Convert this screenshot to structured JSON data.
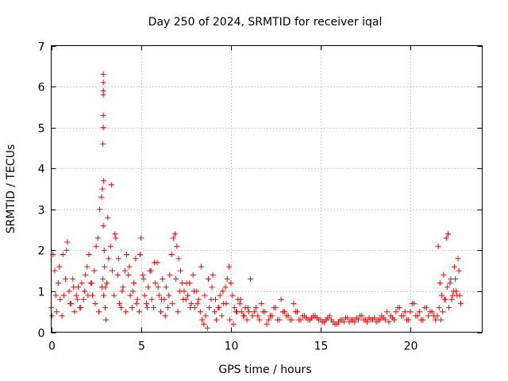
{
  "chart_data": {
    "type": "scatter",
    "title": "Day 250 of 2024, SRMTID for receiver iqal",
    "xlabel": "GPS time / hours",
    "ylabel": "SRMTID / TECUs",
    "xlim": [
      0,
      24
    ],
    "ylim": [
      0,
      7
    ],
    "xticks": [
      0,
      5,
      10,
      15,
      20
    ],
    "yticks": [
      0,
      1,
      2,
      3,
      4,
      5,
      6,
      7
    ],
    "grid": true,
    "marker": "+",
    "color": "#ff0000",
    "series": [
      {
        "name": "SRMTID",
        "x": [
          0.0,
          0.1,
          0.2,
          0.3,
          0.4,
          0.5,
          0.6,
          0.7,
          0.8,
          0.9,
          1.0,
          1.1,
          1.2,
          1.3,
          1.4,
          1.5,
          1.6,
          1.7,
          1.8,
          1.9,
          2.0,
          2.1,
          2.2,
          2.3,
          2.4,
          2.5,
          2.6,
          2.7,
          2.8,
          2.85,
          2.9,
          2.95,
          3.0,
          3.05,
          3.1,
          3.2,
          3.3,
          3.4,
          3.5,
          3.6,
          3.7,
          3.8,
          3.9,
          4.0,
          4.1,
          4.2,
          4.3,
          4.4,
          4.5,
          4.6,
          4.7,
          4.8,
          4.9,
          5.0,
          5.1,
          5.2,
          5.3,
          5.4,
          5.5,
          5.6,
          5.7,
          5.8,
          5.9,
          6.0,
          6.1,
          6.2,
          6.3,
          6.4,
          6.5,
          6.6,
          6.7,
          6.8,
          6.9,
          7.0,
          7.1,
          7.2,
          7.3,
          7.4,
          7.5,
          7.6,
          7.7,
          7.8,
          7.9,
          8.0,
          8.1,
          8.2,
          8.3,
          8.4,
          8.5,
          8.6,
          8.7,
          8.8,
          8.9,
          9.0,
          9.1,
          9.2,
          9.3,
          9.4,
          9.5,
          9.6,
          9.7,
          9.8,
          9.9,
          10.0,
          10.1,
          10.2,
          10.3,
          10.4,
          10.5,
          10.6,
          10.7,
          10.8,
          10.9,
          11.0,
          11.2,
          11.4,
          11.6,
          11.8,
          12.0,
          12.2,
          12.4,
          12.6,
          12.8,
          13.0,
          13.2,
          13.4,
          13.6,
          13.8,
          14.0,
          14.2,
          14.4,
          14.6,
          14.8,
          15.0,
          15.2,
          15.4,
          15.6,
          15.8,
          16.0,
          16.2,
          16.4,
          16.6,
          16.8,
          17.0,
          17.2,
          17.4,
          17.6,
          17.8,
          18.0,
          18.2,
          18.4,
          18.6,
          18.8,
          19.0,
          19.2,
          19.4,
          19.6,
          19.8,
          20.0,
          20.2,
          20.4,
          20.6,
          20.8,
          21.0,
          21.2,
          21.4,
          21.5,
          21.6,
          21.7,
          21.8,
          21.9,
          22.0,
          22.1,
          22.2,
          22.3,
          22.4,
          22.5,
          22.6,
          22.7,
          22.8,
          0.05,
          0.25,
          0.45,
          0.65,
          0.85,
          1.05,
          1.25,
          1.45,
          1.65,
          1.85,
          2.05,
          2.25,
          2.45,
          2.65,
          2.82,
          2.88,
          2.92,
          2.97,
          3.02,
          3.15,
          3.35,
          3.55,
          3.75,
          3.95,
          4.15,
          4.35,
          4.55,
          4.75,
          4.95,
          5.15,
          5.35,
          5.55,
          5.75,
          5.95,
          6.15,
          6.35,
          6.55,
          6.75,
          6.95,
          7.05,
          7.15,
          7.35,
          7.55,
          7.75,
          7.95,
          8.15,
          8.35,
          8.55,
          8.75,
          8.95,
          9.15,
          9.35,
          9.55,
          9.75,
          9.95,
          10.15,
          10.35,
          10.55,
          10.75,
          10.95,
          11.1,
          11.3,
          11.5,
          11.7,
          11.9,
          12.1,
          12.3,
          12.5,
          12.7,
          12.9,
          13.1,
          13.3,
          13.5,
          13.7,
          13.9,
          14.1,
          14.3,
          14.5,
          14.7,
          14.9,
          15.1,
          15.3,
          15.5,
          15.7,
          15.9,
          16.1,
          16.3,
          16.5,
          16.7,
          16.9,
          17.1,
          17.3,
          17.5,
          17.7,
          17.9,
          18.1,
          18.3,
          18.5,
          18.7,
          18.9,
          19.1,
          19.3,
          19.5,
          19.7,
          19.9,
          20.1,
          20.3,
          20.5,
          20.7,
          20.9,
          21.1,
          21.3,
          21.55,
          21.65,
          21.75,
          21.85,
          21.95,
          22.05,
          22.15,
          22.25,
          22.35,
          22.45,
          22.55,
          22.65,
          22.75,
          2.9,
          2.9,
          2.9,
          2.9,
          2.9,
          2.9,
          2.88,
          2.92
        ],
        "y": [
          0.6,
          1.9,
          1.5,
          0.5,
          1.2,
          0.8,
          0.4,
          0.9,
          1.3,
          2.2,
          1.0,
          0.7,
          1.3,
          0.5,
          0.9,
          1.1,
          0.6,
          1.2,
          0.8,
          1.4,
          1.6,
          1.9,
          1.2,
          0.9,
          1.5,
          2.1,
          2.3,
          3.0,
          3.3,
          3.5,
          2.6,
          2.0,
          0.6,
          0.3,
          1.2,
          1.8,
          2.1,
          1.5,
          0.9,
          2.3,
          1.4,
          0.7,
          0.6,
          1.1,
          1.5,
          1.9,
          1.4,
          0.9,
          0.6,
          1.2,
          1.8,
          0.8,
          0.5,
          2.3,
          1.4,
          0.9,
          0.7,
          1.1,
          1.5,
          0.8,
          0.6,
          1.2,
          1.7,
          0.9,
          0.5,
          1.3,
          0.8,
          1.1,
          0.6,
          1.4,
          1.9,
          2.3,
          2.4,
          2.1,
          1.8,
          1.5,
          1.2,
          1.0,
          0.8,
          0.9,
          1.2,
          0.7,
          1.4,
          0.6,
          1.0,
          0.8,
          0.5,
          0.3,
          0.2,
          0.4,
          0.1,
          0.6,
          0.8,
          1.4,
          0.5,
          0.3,
          0.6,
          0.9,
          0.4,
          0.7,
          1.1,
          1.3,
          1.6,
          1.2,
          0.9,
          0.6,
          0.5,
          0.8,
          0.7,
          0.5,
          0.4,
          0.6,
          0.3,
          0.5,
          0.4,
          0.6,
          0.3,
          0.5,
          0.2,
          0.4,
          0.6,
          0.3,
          0.8,
          0.5,
          0.4,
          0.3,
          0.5,
          0.3,
          0.4,
          0.35,
          0.3,
          0.4,
          0.35,
          0.3,
          0.25,
          0.35,
          0.3,
          0.2,
          0.25,
          0.3,
          0.35,
          0.25,
          0.3,
          0.35,
          0.4,
          0.3,
          0.25,
          0.3,
          0.35,
          0.3,
          0.4,
          0.3,
          0.25,
          0.35,
          0.5,
          0.6,
          0.4,
          0.3,
          0.5,
          0.7,
          0.4,
          0.3,
          0.6,
          0.4,
          0.5,
          0.3,
          0.4,
          0.6,
          0.3,
          0.5,
          0.8,
          2.3,
          2.4,
          1.2,
          0.8,
          1.0,
          1.3,
          0.9,
          1.5,
          0.7,
          0.4,
          0.9,
          1.6,
          1.9,
          2.0,
          0.7,
          1.1,
          0.8,
          0.6,
          1.0,
          0.9,
          1.2,
          0.7,
          0.5,
          1.1,
          1.3,
          0.9,
          1.6,
          1.1,
          2.8,
          3.6,
          2.4,
          1.8,
          1.0,
          0.5,
          1.6,
          1.0,
          0.7,
          1.9,
          1.3,
          0.6,
          1.5,
          1.7,
          1.1,
          0.8,
          0.4,
          0.9,
          0.7,
          1.3,
          0.5,
          1.0,
          0.8,
          1.2,
          0.6,
          1.0,
          0.7,
          1.6,
          0.9,
          1.3,
          1.1,
          0.8,
          0.6,
          1.0,
          0.7,
          0.3,
          0.2,
          0.5,
          0.8,
          0.4,
          0.6,
          1.3,
          0.5,
          0.4,
          0.7,
          0.5,
          0.3,
          0.4,
          0.6,
          0.3,
          0.5,
          0.4,
          0.3,
          0.7,
          0.5,
          0.3,
          0.4,
          0.3,
          0.35,
          0.4,
          0.3,
          0.25,
          0.3,
          0.4,
          0.25,
          0.2,
          0.3,
          0.25,
          0.35,
          0.3,
          0.25,
          0.3,
          0.4,
          0.3,
          0.35,
          0.3,
          0.25,
          0.3,
          0.35,
          0.5,
          0.4,
          0.3,
          0.6,
          0.4,
          0.5,
          0.3,
          0.7,
          0.4,
          0.5,
          0.3,
          0.6,
          0.5,
          0.4,
          2.1,
          1.2,
          0.9,
          1.4,
          0.8,
          1.1,
          0.6,
          1.3,
          0.9,
          1.6,
          1.0,
          1.8,
          0.9,
          6.3,
          6.1,
          5.9,
          5.8,
          5.3,
          5.0,
          4.6,
          3.7
        ]
      }
    ]
  }
}
